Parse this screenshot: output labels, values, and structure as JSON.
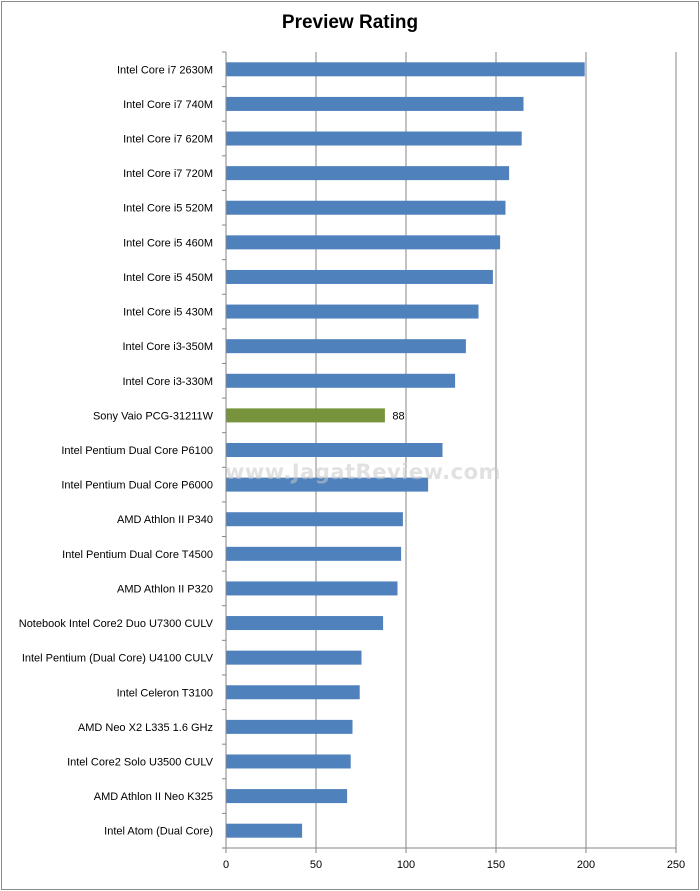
{
  "chart_data": {
    "type": "bar",
    "orientation": "horizontal",
    "title": "Preview Rating",
    "watermark": "www.JagatReview.com",
    "categories": [
      "Intel Core i7 2630M",
      "Intel Core i7 740M",
      "Intel Core i7 620M",
      "Intel Core i7 720M",
      "Intel Core i5 520M",
      "Intel Core i5 460M",
      "Intel Core i5 450M",
      "Intel Core i5 430M",
      "Intel Core i3-350M",
      "Intel Core i3-330M",
      "Sony Vaio PCG-31211W",
      "Intel Pentium Dual Core P6100",
      "Intel Pentium Dual Core P6000",
      "AMD Athlon II P340",
      "Intel Pentium Dual Core T4500",
      "AMD Athlon II P320",
      "Notebook Intel Core2 Duo U7300 CULV",
      "Intel Pentium (Dual Core) U4100 CULV",
      "Intel Celeron T3100",
      "AMD Neo X2 L335 1.6 GHz",
      "Intel Core2 Solo U3500 CULV",
      "AMD Athlon II Neo K325",
      "Intel Atom (Dual Core)"
    ],
    "values": [
      199,
      165,
      164,
      157,
      155,
      152,
      148,
      140,
      133,
      127,
      88,
      120,
      112,
      98,
      97,
      95,
      87,
      75,
      74,
      70,
      69,
      67,
      42
    ],
    "highlight_index": 10,
    "data_labels": [
      {
        "index": 10,
        "text": "88"
      }
    ],
    "xlim": [
      0,
      250
    ],
    "xticks": [
      0,
      50,
      100,
      150,
      200,
      250
    ],
    "xlabel": "",
    "ylabel": "",
    "grid": "vertical",
    "legend": "none",
    "colors": {
      "bar": "#4f81bd",
      "highlight": "#77933c",
      "grid": "#868686"
    }
  }
}
